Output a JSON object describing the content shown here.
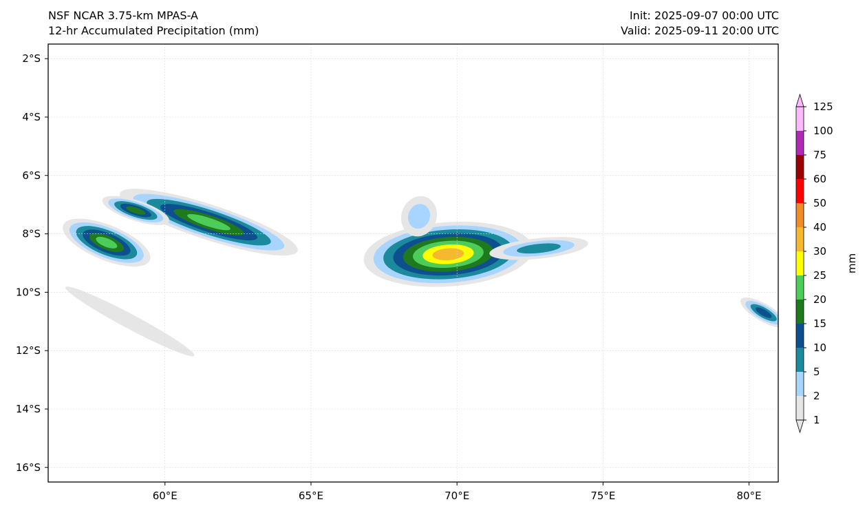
{
  "header": {
    "model": "NSF NCAR 3.75-km MPAS-A",
    "field": "12-hr Accumulated Precipitation (mm)",
    "init": "Init: 2025-09-07 00:00 UTC",
    "valid": "Valid: 2025-09-11 20:00 UTC"
  },
  "map": {
    "lon_range": [
      56.0,
      81.0
    ],
    "lat_range": [
      -16.5,
      -1.5
    ],
    "lon_ticks": [
      {
        "value": 60,
        "label": "60°E"
      },
      {
        "value": 65,
        "label": "65°E"
      },
      {
        "value": 70,
        "label": "70°E"
      },
      {
        "value": 75,
        "label": "75°E"
      },
      {
        "value": 80,
        "label": "80°E"
      }
    ],
    "lat_ticks": [
      {
        "value": -2,
        "label": "2°S"
      },
      {
        "value": -4,
        "label": "4°S"
      },
      {
        "value": -6,
        "label": "6°S"
      },
      {
        "value": -8,
        "label": "8°S"
      },
      {
        "value": -10,
        "label": "10°S"
      },
      {
        "value": -12,
        "label": "12°S"
      },
      {
        "value": -14,
        "label": "14°S"
      },
      {
        "value": -16,
        "label": "16°S"
      }
    ],
    "precip_features": [
      {
        "name": "central-system",
        "lon": 69.7,
        "lat": -8.7,
        "rx": 2.9,
        "ry": 1.1,
        "rot": -4,
        "max_level": 8
      },
      {
        "name": "central-system-east-tail",
        "lon": 72.8,
        "lat": -8.5,
        "rx": 1.7,
        "ry": 0.35,
        "rot": -6,
        "max_level": 3
      },
      {
        "name": "central-system-north-arc",
        "lon": 68.7,
        "lat": -7.4,
        "rx": 0.6,
        "ry": 0.7,
        "rot": 20,
        "max_level": 2
      },
      {
        "name": "west-band",
        "lon": 61.5,
        "lat": -7.6,
        "rx": 3.2,
        "ry": 0.6,
        "rot": 18,
        "max_level": 6
      },
      {
        "name": "northwest-band",
        "lon": 59.0,
        "lat": -7.2,
        "rx": 1.2,
        "ry": 0.35,
        "rot": 18,
        "max_level": 5
      },
      {
        "name": "far-west-cluster",
        "lon": 58.0,
        "lat": -8.3,
        "rx": 1.6,
        "ry": 0.6,
        "rot": 22,
        "max_level": 6
      },
      {
        "name": "east-edge-band",
        "lon": 80.5,
        "lat": -10.7,
        "rx": 0.9,
        "ry": 0.3,
        "rot": 30,
        "max_level": 4
      },
      {
        "name": "southwest-streaks",
        "lon": 58.8,
        "lat": -11.0,
        "rx": 2.5,
        "ry": 0.25,
        "rot": 28,
        "max_level": 1
      }
    ]
  },
  "colorbar": {
    "unit_label": "mm",
    "levels": [
      "1",
      "2",
      "5",
      "10",
      "15",
      "20",
      "25",
      "30",
      "40",
      "50",
      "60",
      "75",
      "100",
      "125"
    ],
    "colors": [
      "#e6e6e6",
      "#a8d5ff",
      "#1b8a9c",
      "#0d4f8f",
      "#1f7a1f",
      "#4dcc5a",
      "#ffff00",
      "#f5b82e",
      "#f08c2a",
      "#ff0000",
      "#9b0000",
      "#b02ab8",
      "#ffb9ff"
    ]
  }
}
